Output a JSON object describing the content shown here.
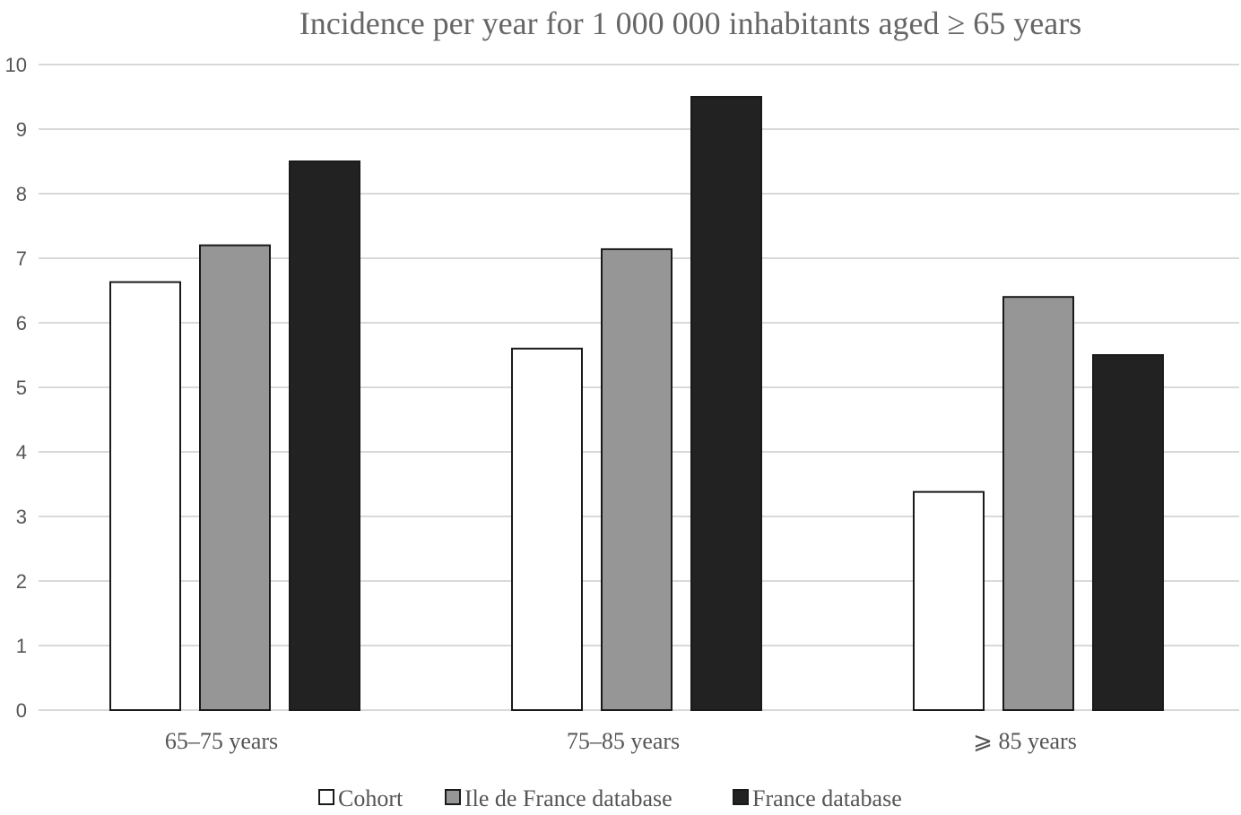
{
  "chart_data": {
    "type": "bar",
    "title": "Incidence per year for 1 000 000 inhabitants aged ≥ 65 years",
    "categories": [
      "65–75 years",
      "75–85 years",
      "⩾ 85 years"
    ],
    "series": [
      {
        "name": "Cohort",
        "color": "#ffffff",
        "values": [
          6.63,
          5.6,
          3.38
        ]
      },
      {
        "name": "Ile de France database",
        "color": "#969696",
        "values": [
          7.2,
          7.14,
          6.4
        ]
      },
      {
        "name": "France database",
        "color": "#222222",
        "values": [
          8.5,
          9.5,
          5.5
        ]
      }
    ],
    "ylim": [
      0,
      10
    ],
    "yticks": [
      "0",
      "1",
      "2",
      "3",
      "4",
      "5",
      "6",
      "7",
      "8",
      "9",
      "10"
    ],
    "grid": true,
    "legend_position": "bottom"
  }
}
